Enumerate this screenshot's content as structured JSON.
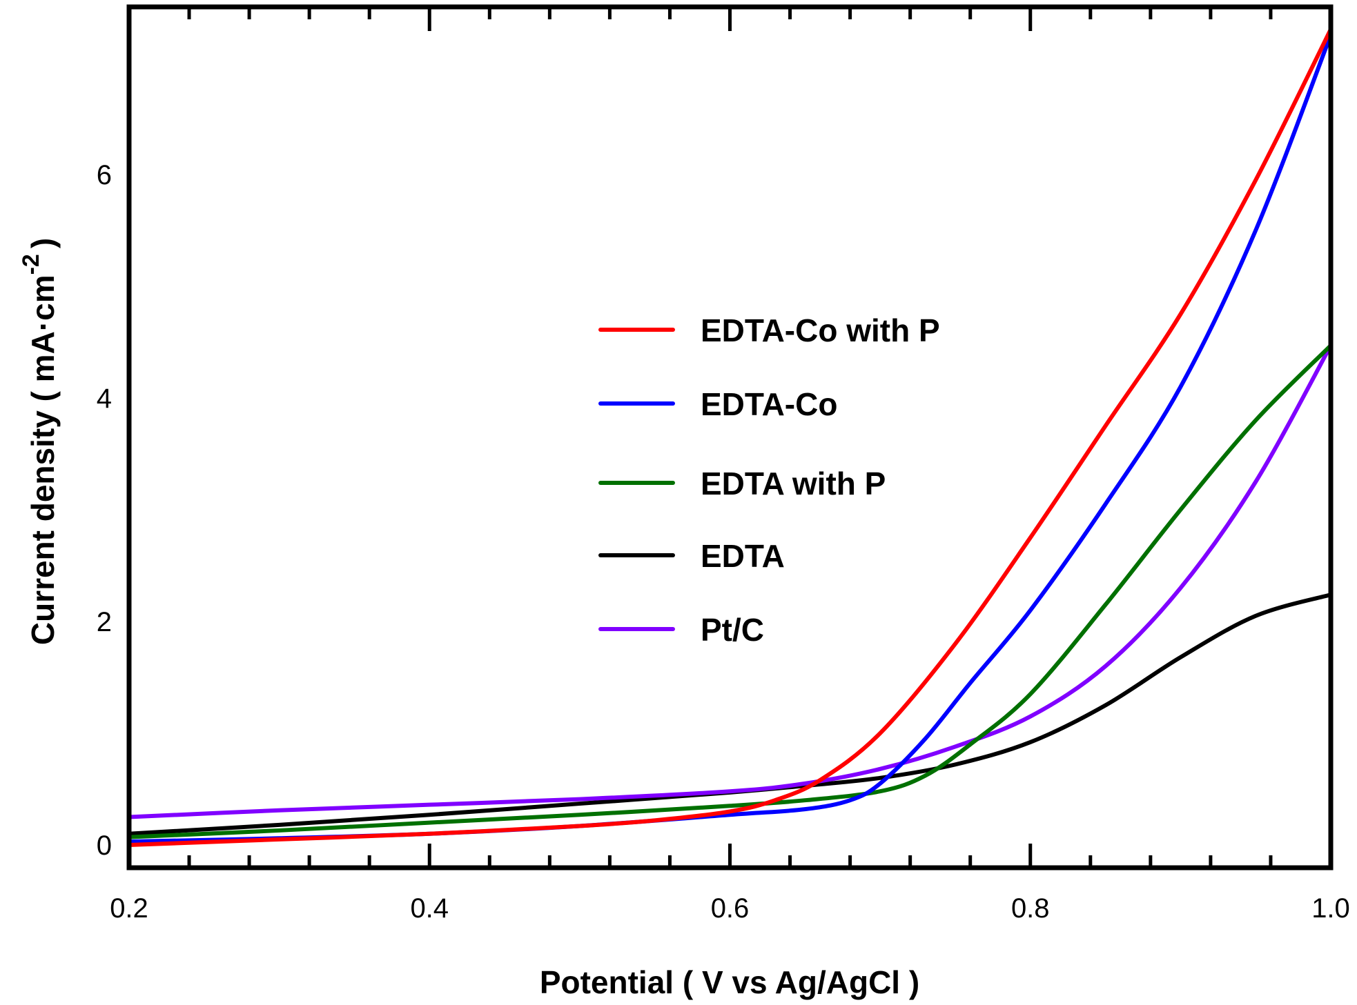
{
  "chart_data": {
    "type": "line",
    "title": "",
    "xlabel": "Potential ( V vs Ag/AgCl )",
    "ylabel_main": "Current density ( mA·cm",
    "ylabel_sup": "-2",
    "ylabel_close": ")",
    "xlim": [
      0.2,
      1.0
    ],
    "ylim": [
      -0.2,
      7.5
    ],
    "x_ticks": [
      0.2,
      0.4,
      0.6,
      0.8,
      1.0
    ],
    "x_tick_labels": [
      "0.2",
      "0.4",
      "0.6",
      "0.8",
      "1.0"
    ],
    "x_minor_step": 0.04,
    "y_ticks": [
      0,
      2,
      4,
      6
    ],
    "y_tick_labels": [
      "0",
      "2",
      "4",
      "6"
    ],
    "grid": false,
    "legend_position": "center",
    "series": [
      {
        "name": "EDTA-Co with P",
        "color": "#ff0000",
        "x": [
          0.2,
          0.3,
          0.4,
          0.5,
          0.55,
          0.6,
          0.63,
          0.66,
          0.7,
          0.75,
          0.8,
          0.85,
          0.9,
          0.95,
          1.0
        ],
        "y": [
          0.0,
          0.05,
          0.1,
          0.17,
          0.22,
          0.3,
          0.4,
          0.58,
          1.0,
          1.8,
          2.75,
          3.75,
          4.75,
          5.95,
          7.3
        ]
      },
      {
        "name": "EDTA-Co",
        "color": "#0000ff",
        "x": [
          0.2,
          0.3,
          0.4,
          0.5,
          0.6,
          0.65,
          0.68,
          0.7,
          0.73,
          0.76,
          0.8,
          0.85,
          0.9,
          0.95,
          1.0
        ],
        "y": [
          0.03,
          0.06,
          0.1,
          0.17,
          0.27,
          0.32,
          0.4,
          0.55,
          0.95,
          1.45,
          2.1,
          3.05,
          4.1,
          5.5,
          7.25
        ]
      },
      {
        "name": "EDTA with P",
        "color": "#007000",
        "x": [
          0.2,
          0.3,
          0.4,
          0.5,
          0.6,
          0.65,
          0.7,
          0.73,
          0.76,
          0.8,
          0.85,
          0.9,
          0.95,
          1.0
        ],
        "y": [
          0.07,
          0.13,
          0.2,
          0.27,
          0.35,
          0.4,
          0.48,
          0.62,
          0.9,
          1.35,
          2.15,
          3.0,
          3.8,
          4.47
        ]
      },
      {
        "name": "EDTA",
        "color": "#000000",
        "x": [
          0.2,
          0.3,
          0.4,
          0.5,
          0.6,
          0.65,
          0.7,
          0.75,
          0.8,
          0.85,
          0.9,
          0.95,
          1.0
        ],
        "y": [
          0.1,
          0.18,
          0.27,
          0.37,
          0.47,
          0.53,
          0.6,
          0.72,
          0.92,
          1.25,
          1.68,
          2.05,
          2.24
        ]
      },
      {
        "name": "Pt/C",
        "color": "#8000ff",
        "x": [
          0.2,
          0.3,
          0.4,
          0.5,
          0.6,
          0.65,
          0.7,
          0.75,
          0.8,
          0.85,
          0.9,
          0.95,
          1.0
        ],
        "y": [
          0.25,
          0.31,
          0.36,
          0.41,
          0.48,
          0.55,
          0.68,
          0.88,
          1.15,
          1.6,
          2.3,
          3.25,
          4.47
        ]
      }
    ]
  }
}
